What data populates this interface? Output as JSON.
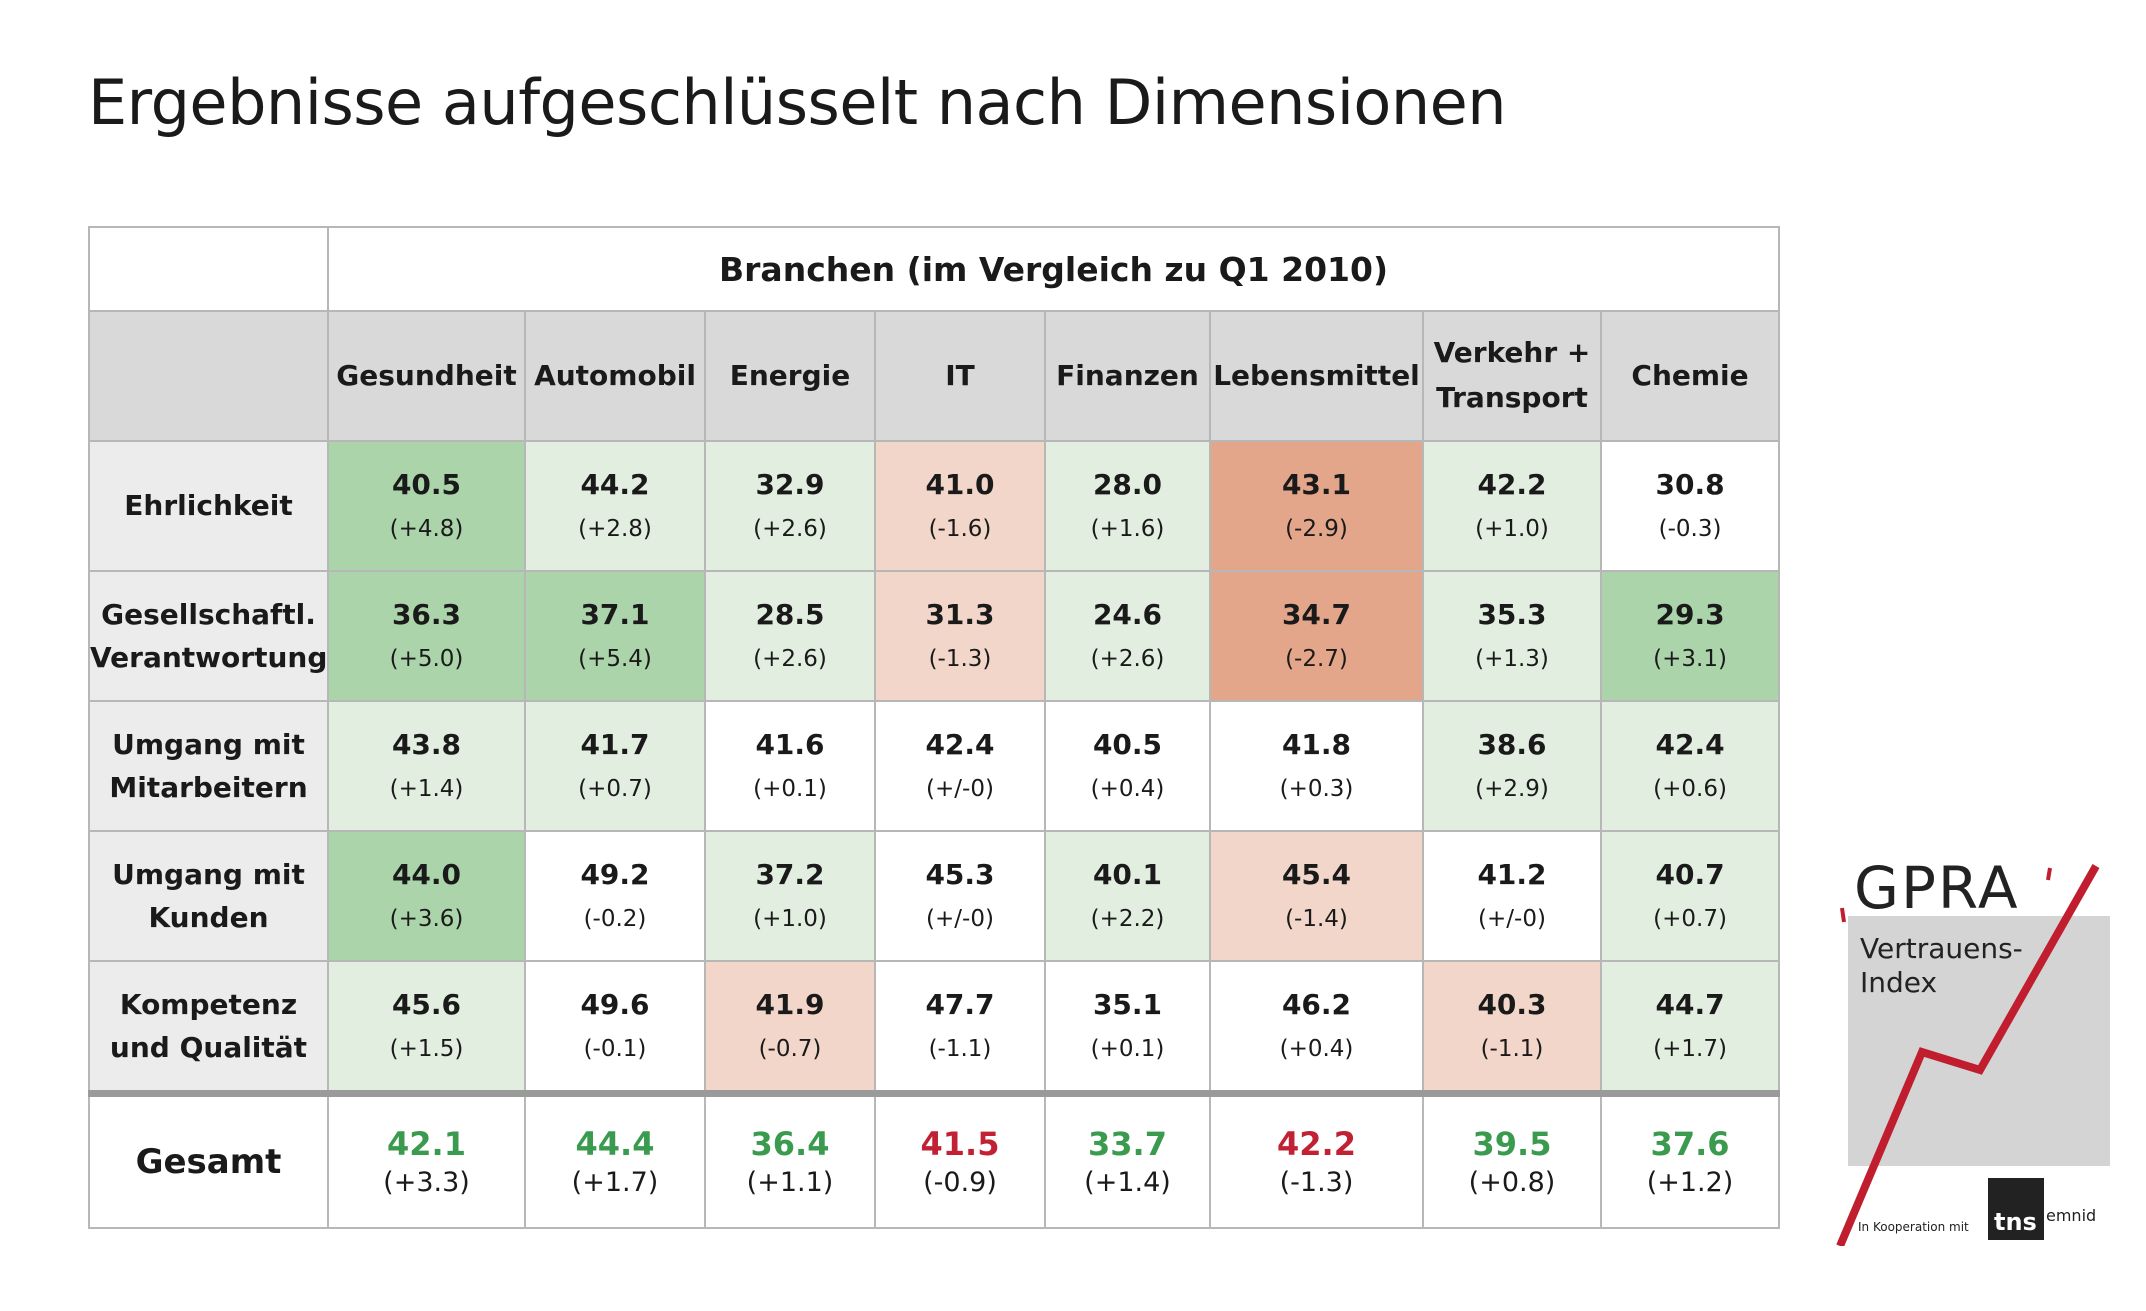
{
  "title": "Ergebnisse aufgeschlüsselt nach Dimensionen",
  "chart_data": {
    "type": "table",
    "header": "Branchen (im Vergleich zu Q1 2010)",
    "columns": [
      "Gesundheit",
      "Automobil",
      "Energie",
      "IT",
      "Finanzen",
      "Lebensmittel",
      "Verkehr + Transport",
      "Chemie"
    ],
    "rows": [
      {
        "label": "Ehrlichkeit",
        "values": [
          "40.5",
          "44.2",
          "32.9",
          "41.0",
          "28.0",
          "43.1",
          "42.2",
          "30.8"
        ],
        "changes": [
          "(+4.8)",
          "(+2.8)",
          "(+2.6)",
          "(-1.6)",
          "(+1.6)",
          "(-2.9)",
          "(+1.0)",
          "(-0.3)"
        ],
        "shades": [
          "green-strong",
          "green-light",
          "green-light",
          "red-light",
          "green-light",
          "red-strong",
          "green-light",
          "none"
        ]
      },
      {
        "label": "Gesellschaftl. Verantwortung",
        "values": [
          "36.3",
          "37.1",
          "28.5",
          "31.3",
          "24.6",
          "34.7",
          "35.3",
          "29.3"
        ],
        "changes": [
          "(+5.0)",
          "(+5.4)",
          "(+2.6)",
          "(-1.3)",
          "(+2.6)",
          "(-2.7)",
          "(+1.3)",
          "(+3.1)"
        ],
        "shades": [
          "green-strong",
          "green-strong",
          "green-light",
          "red-light",
          "green-light",
          "red-strong",
          "green-light",
          "green-strong"
        ]
      },
      {
        "label": "Umgang mit Mitarbeitern",
        "values": [
          "43.8",
          "41.7",
          "41.6",
          "42.4",
          "40.5",
          "41.8",
          "38.6",
          "42.4"
        ],
        "changes": [
          "(+1.4)",
          "(+0.7)",
          "(+0.1)",
          "(+/-0)",
          "(+0.4)",
          "(+0.3)",
          "(+2.9)",
          "(+0.6)"
        ],
        "shades": [
          "green-light",
          "green-light",
          "none",
          "none",
          "none",
          "none",
          "green-light",
          "green-light"
        ]
      },
      {
        "label": "Umgang mit Kunden",
        "values": [
          "44.0",
          "49.2",
          "37.2",
          "45.3",
          "40.1",
          "45.4",
          "41.2",
          "40.7"
        ],
        "changes": [
          "(+3.6)",
          "(-0.2)",
          "(+1.0)",
          "(+/-0)",
          "(+2.2)",
          "(-1.4)",
          "(+/-0)",
          "(+0.7)"
        ],
        "shades": [
          "green-strong",
          "none",
          "green-light",
          "none",
          "green-light",
          "red-light",
          "none",
          "green-light"
        ]
      },
      {
        "label": "Kompetenz und Qualität",
        "values": [
          "45.6",
          "49.6",
          "41.9",
          "47.7",
          "35.1",
          "46.2",
          "40.3",
          "44.7"
        ],
        "changes": [
          "(+1.5)",
          "(-0.1)",
          "(-0.7)",
          "(-1.1)",
          "(+0.1)",
          "(+0.4)",
          "(-1.1)",
          "(+1.7)"
        ],
        "shades": [
          "green-light",
          "none",
          "red-light",
          "none",
          "none",
          "none",
          "red-light",
          "green-light"
        ]
      }
    ],
    "total": {
      "label": "Gesamt",
      "values": [
        "42.1",
        "44.4",
        "36.4",
        "41.5",
        "33.7",
        "42.2",
        "39.5",
        "37.6"
      ],
      "changes": [
        "(+3.3)",
        "(+1.7)",
        "(+1.1)",
        "(-0.9)",
        "(+1.4)",
        "(-1.3)",
        "(+0.8)",
        "(+1.2)"
      ],
      "trend": [
        "up",
        "up",
        "up",
        "down",
        "up",
        "down",
        "up",
        "up"
      ]
    }
  },
  "colors": {
    "green-strong": "#abd4ab",
    "green-light": "#e2efe0",
    "red-light": "#f2d6c9",
    "red-strong": "#e4a68a",
    "none": "#ffffff",
    "up": "#3a9a4e",
    "down": "#c22033",
    "logo_red": "#c01e2e"
  },
  "logo": {
    "name": "GPRA",
    "subtitle_line1": "Vertrauens-",
    "subtitle_line2": "Index",
    "cooperation": "In Kooperation mit",
    "partner_short": "tns",
    "partner_rest": "emnid"
  }
}
